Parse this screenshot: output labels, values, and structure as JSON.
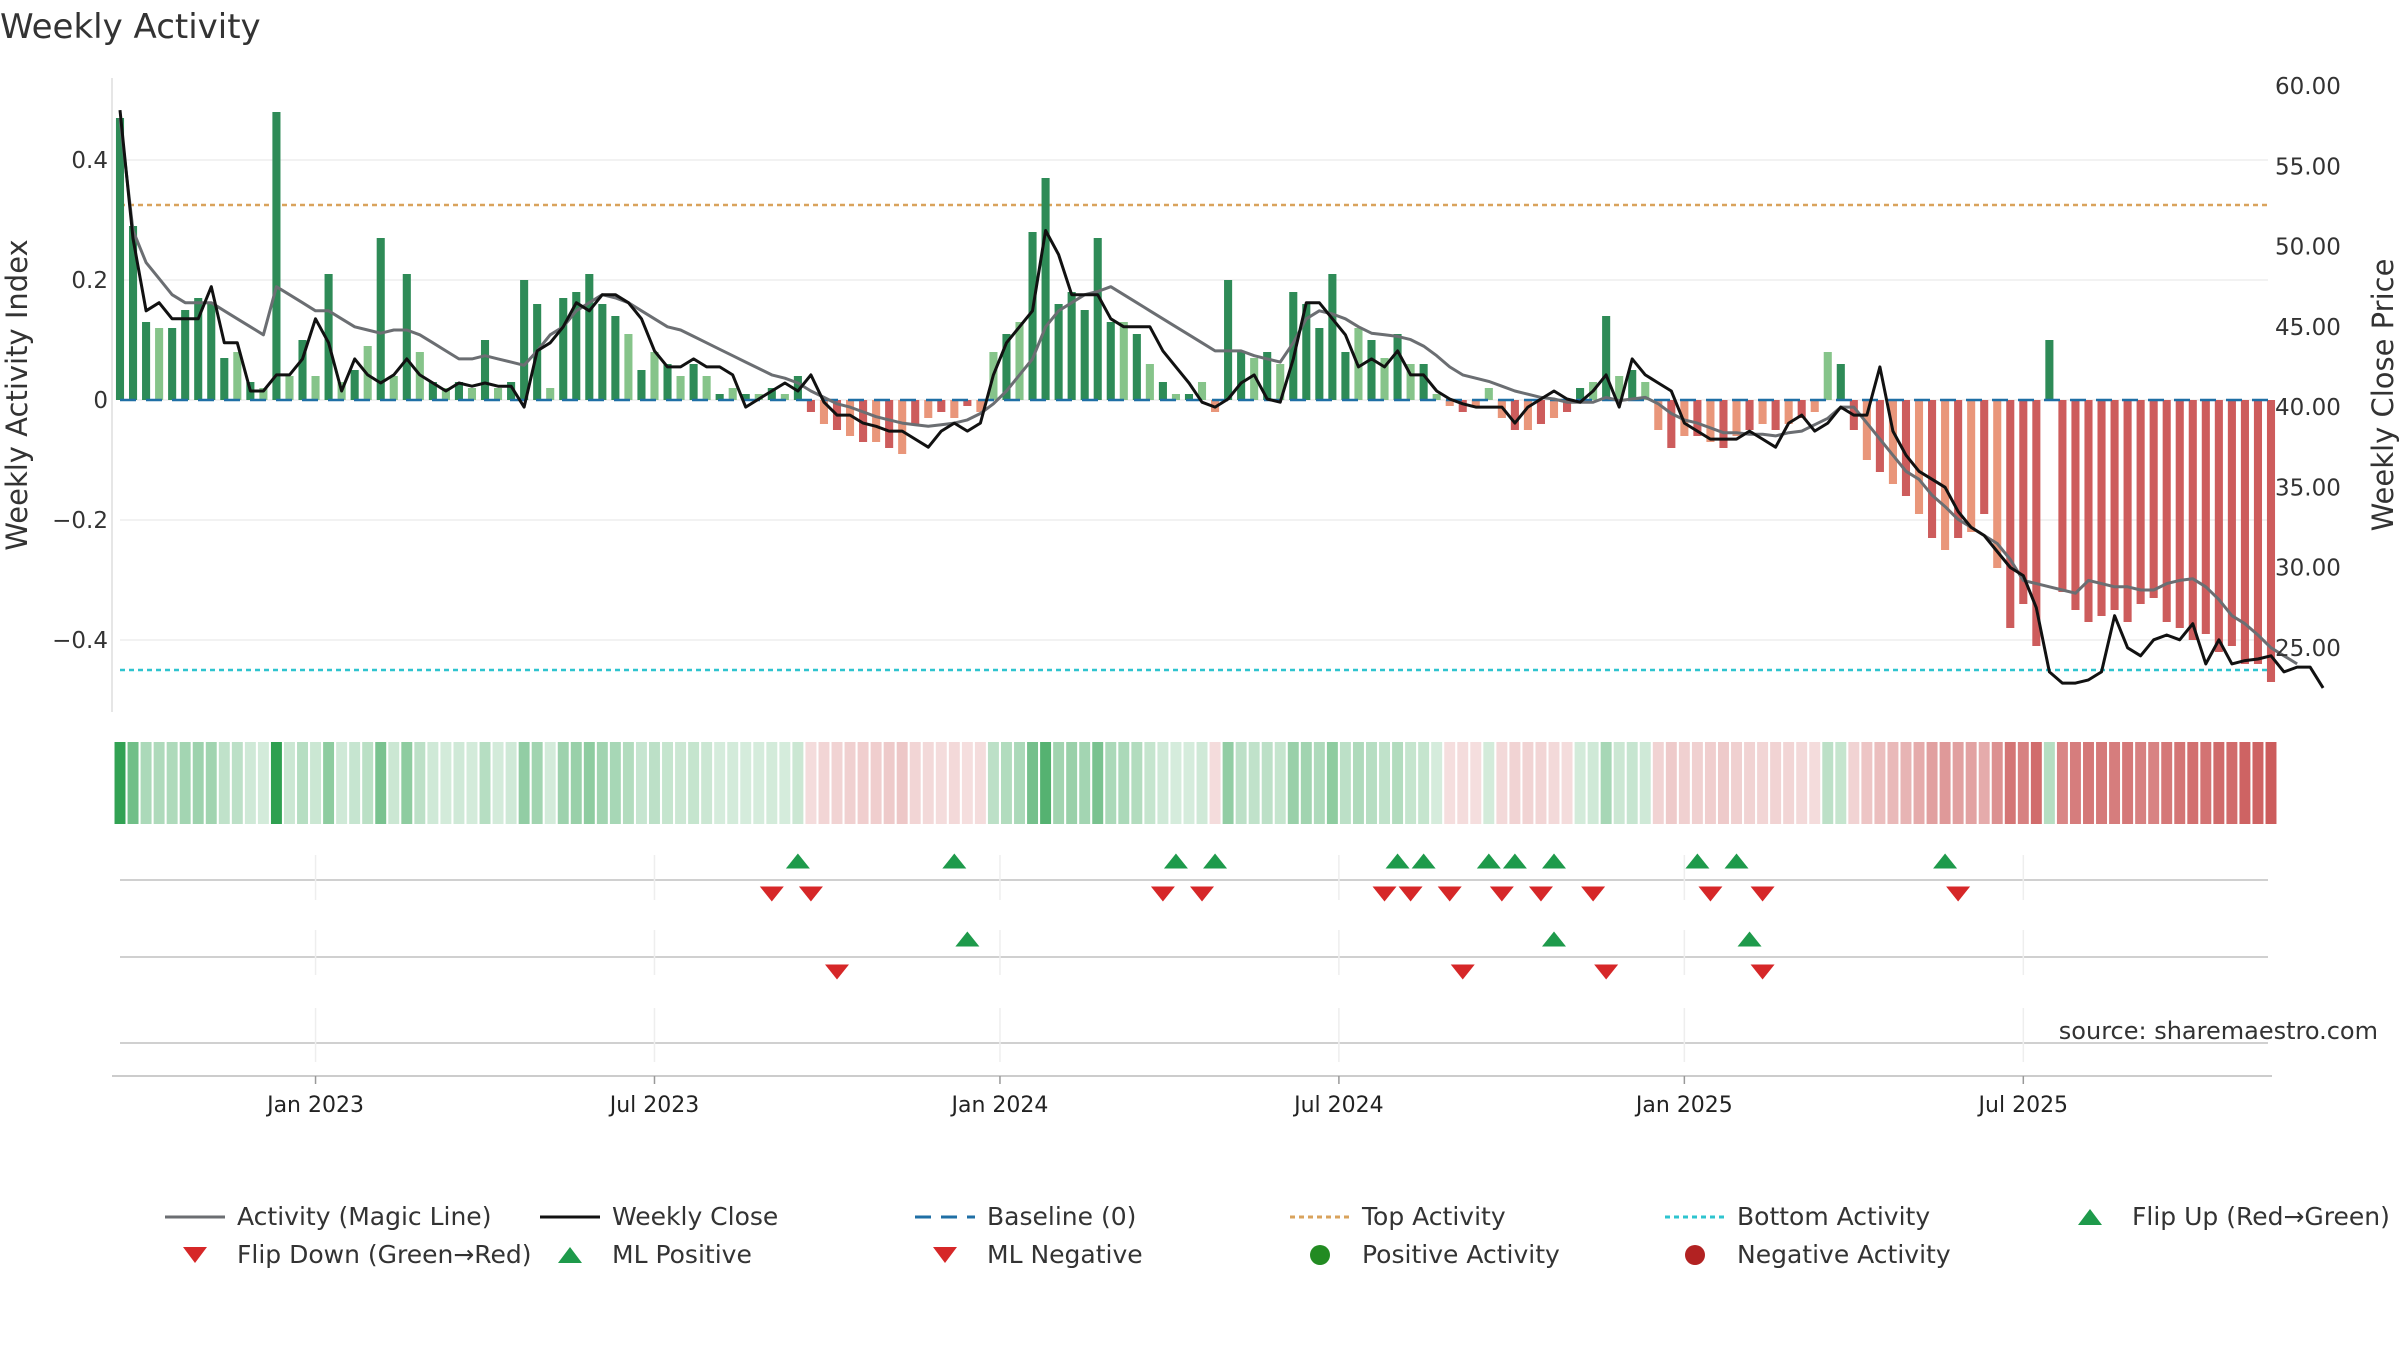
{
  "chart_data": {
    "type": "bar",
    "title": "Weekly Activity",
    "ylabel_left": "Weekly Activity Index",
    "ylabel_right": "Weekly Close Price",
    "source": "source: sharemaestro.com",
    "ylim_left": [
      -0.52,
      0.55
    ],
    "ylim_right": [
      21.0,
      61.0
    ],
    "left_ticks": [
      {
        "v": 0.4,
        "label": "0.4"
      },
      {
        "v": 0.2,
        "label": "0.2"
      },
      {
        "v": 0,
        "label": "0"
      },
      {
        "v": -0.2,
        "label": "−0.2"
      },
      {
        "v": -0.4,
        "label": "−0.4"
      }
    ],
    "right_ticks": [
      {
        "v": 60,
        "label": "60.00"
      },
      {
        "v": 55,
        "label": "55.00"
      },
      {
        "v": 50,
        "label": "50.00"
      },
      {
        "v": 45,
        "label": "45.00"
      },
      {
        "v": 40,
        "label": "40.00"
      },
      {
        "v": 35,
        "label": "35.00"
      },
      {
        "v": 30,
        "label": "30.00"
      },
      {
        "v": 25,
        "label": "25.00"
      }
    ],
    "x_ticks": [
      {
        "week": 15,
        "label": "Jan 2023"
      },
      {
        "week": 41,
        "label": "Jul 2023"
      },
      {
        "week": 67.5,
        "label": "Jan 2024"
      },
      {
        "week": 93.5,
        "label": "Jul 2024"
      },
      {
        "week": 120,
        "label": "Jan 2025"
      },
      {
        "week": 146,
        "label": "Jul 2025"
      }
    ],
    "top_activity": 0.325,
    "bottom_activity": -0.45,
    "activity": [
      0.47,
      0.29,
      0.13,
      0.12,
      0.12,
      0.15,
      0.17,
      0.16,
      0.07,
      0.08,
      0.03,
      0.02,
      0.48,
      0.04,
      0.1,
      0.04,
      0.21,
      0.03,
      0.05,
      0.09,
      0.27,
      0.04,
      0.21,
      0.08,
      0.03,
      0.02,
      0.03,
      0.02,
      0.1,
      0.02,
      0.03,
      0.2,
      0.16,
      0.02,
      0.17,
      0.18,
      0.21,
      0.16,
      0.14,
      0.11,
      0.05,
      0.08,
      0.06,
      0.04,
      0.06,
      0.04,
      0.01,
      0.02,
      0.01,
      0.01,
      0.02,
      0.01,
      0.04,
      -0.02,
      -0.04,
      -0.05,
      -0.06,
      -0.07,
      -0.07,
      -0.08,
      -0.09,
      -0.04,
      -0.03,
      -0.02,
      -0.03,
      -0.01,
      -0.02,
      0.08,
      0.11,
      0.13,
      0.28,
      0.37,
      0.16,
      0.18,
      0.15,
      0.27,
      0.13,
      0.13,
      0.11,
      0.06,
      0.03,
      0.01,
      0.01,
      0.03,
      -0.02,
      0.2,
      0.08,
      0.07,
      0.08,
      0.06,
      0.18,
      0.16,
      0.12,
      0.21,
      0.08,
      0.12,
      0.1,
      0.07,
      0.11,
      0.06,
      0.06,
      0.01,
      -0.01,
      -0.02,
      -0.01,
      0.02,
      -0.03,
      -0.05,
      -0.05,
      -0.04,
      -0.03,
      -0.02,
      0.02,
      0.03,
      0.14,
      0.04,
      0.05,
      0.03,
      -0.05,
      -0.08,
      -0.06,
      -0.06,
      -0.07,
      -0.08,
      -0.06,
      -0.05,
      -0.04,
      -0.05,
      -0.04,
      -0.03,
      -0.02,
      0.08,
      0.06,
      -0.05,
      -0.1,
      -0.12,
      -0.14,
      -0.16,
      -0.19,
      -0.23,
      -0.25,
      -0.23,
      -0.22,
      -0.19,
      -0.28,
      -0.38,
      -0.34,
      -0.41,
      0.1,
      -0.32,
      -0.35,
      -0.37,
      -0.36,
      -0.35,
      -0.37,
      -0.34,
      -0.33,
      -0.37,
      -0.38,
      -0.4,
      -0.39,
      -0.42,
      -0.41,
      -0.44,
      -0.44,
      -0.47
    ],
    "weekly_close": [
      58.5,
      50.5,
      46.0,
      46.5,
      45.5,
      45.5,
      45.5,
      47.5,
      44.0,
      44.0,
      41.0,
      41.0,
      42.0,
      42.0,
      43.0,
      45.5,
      44.0,
      41.0,
      43.0,
      42.0,
      41.5,
      42.0,
      43.0,
      42.0,
      41.5,
      41.0,
      41.5,
      41.3,
      41.5,
      41.3,
      41.3,
      40.0,
      43.5,
      44.0,
      45.0,
      46.5,
      46.0,
      47.0,
      47.0,
      46.5,
      45.5,
      43.5,
      42.5,
      42.5,
      43.0,
      42.5,
      42.5,
      42.0,
      40.0,
      40.5,
      41.0,
      41.5,
      41.0,
      42.0,
      40.3,
      39.5,
      39.5,
      39.0,
      38.8,
      38.5,
      38.5,
      38.0,
      37.5,
      38.5,
      39.0,
      38.5,
      39.0,
      42.0,
      44.0,
      45.0,
      46.0,
      51.0,
      49.5,
      47.0,
      47.0,
      47.0,
      45.5,
      45.0,
      45.0,
      45.0,
      43.5,
      42.5,
      41.5,
      40.3,
      40.0,
      40.5,
      41.5,
      42.0,
      40.5,
      40.3,
      43.0,
      46.5,
      46.5,
      45.5,
      44.5,
      42.5,
      43.0,
      42.5,
      43.5,
      42.0,
      42.0,
      41.0,
      40.5,
      40.2,
      40.0,
      40.0,
      40.0,
      39.0,
      40.0,
      40.5,
      41.0,
      40.5,
      40.3,
      41.0,
      42.0,
      40.0,
      43.0,
      42.0,
      41.5,
      41.0,
      39.0,
      38.5,
      38.0,
      38.0,
      38.0,
      38.5,
      38.0,
      37.5,
      39.0,
      39.5,
      38.5,
      39.0,
      40.0,
      39.5,
      39.5,
      42.5,
      38.5,
      37.0,
      36.0,
      35.5,
      35.0,
      33.5,
      32.5,
      32.0,
      31.0,
      30.0,
      29.5,
      27.5,
      23.5,
      22.8,
      22.8,
      23.0,
      23.5,
      27.0,
      25.0,
      24.5,
      25.5,
      25.8,
      25.5,
      26.5,
      24.0,
      25.5,
      24.0,
      24.2,
      24.3,
      24.5,
      23.5,
      23.8,
      23.8,
      22.5
    ],
    "magic_line": [
      58.0,
      51.0,
      49.0,
      48.0,
      47.0,
      46.5,
      46.5,
      46.5,
      46.0,
      45.5,
      45.0,
      44.5,
      47.5,
      47.0,
      46.5,
      46.0,
      46.0,
      45.5,
      45.0,
      44.8,
      44.6,
      44.8,
      44.8,
      44.5,
      44.0,
      43.5,
      43.0,
      43.0,
      43.2,
      43.0,
      42.8,
      42.6,
      43.5,
      44.5,
      45.0,
      46.0,
      46.5,
      47.0,
      46.8,
      46.5,
      46.0,
      45.5,
      45.0,
      44.8,
      44.4,
      44.0,
      43.6,
      43.2,
      42.8,
      42.4,
      42.0,
      41.8,
      41.5,
      41.0,
      40.6,
      40.2,
      40.0,
      39.7,
      39.4,
      39.2,
      39.0,
      38.9,
      38.8,
      38.9,
      39.0,
      39.2,
      39.6,
      40.2,
      41.0,
      42.0,
      43.0,
      45.0,
      46.0,
      46.5,
      47.0,
      47.2,
      47.5,
      47.0,
      46.5,
      46.0,
      45.5,
      45.0,
      44.5,
      44.0,
      43.5,
      43.5,
      43.5,
      43.2,
      43.0,
      42.8,
      44.0,
      45.5,
      46.0,
      45.8,
      45.5,
      45.0,
      44.6,
      44.5,
      44.4,
      44.2,
      43.8,
      43.2,
      42.5,
      42.0,
      41.8,
      41.6,
      41.3,
      41.0,
      40.8,
      40.6,
      40.5,
      40.3,
      40.3,
      40.3,
      40.6,
      40.4,
      40.5,
      40.6,
      40.2,
      39.6,
      39.2,
      39.0,
      38.7,
      38.4,
      38.4,
      38.3,
      38.3,
      38.2,
      38.4,
      38.5,
      38.9,
      39.3,
      40.0,
      40.0,
      39.0,
      38.0,
      37.0,
      36.0,
      35.5,
      34.5,
      33.8,
      33.0,
      32.5,
      32.0,
      31.5,
      30.5,
      29.2,
      29.0,
      28.8,
      28.6,
      28.4,
      29.2,
      29.0,
      28.8,
      28.8,
      28.6,
      28.6,
      29.0,
      29.2,
      29.3,
      28.8,
      28.0,
      27.0,
      26.5,
      25.8,
      25.0,
      24.5,
      24.0
    ],
    "flip_up_weeks": [
      52,
      64,
      81,
      84,
      98,
      100,
      105,
      107,
      110,
      121,
      124,
      140
    ],
    "flip_down_weeks": [
      50,
      53,
      80,
      83,
      97,
      99,
      102,
      106,
      109,
      113,
      122,
      126,
      141
    ],
    "ml_positive_weeks": [
      65,
      110,
      125
    ],
    "ml_negative_weeks": [
      55,
      103,
      114,
      126
    ],
    "legend": [
      {
        "key": "magic",
        "label": "Activity (Magic Line)"
      },
      {
        "key": "close",
        "label": "Weekly Close"
      },
      {
        "key": "baseline",
        "label": "Baseline (0)"
      },
      {
        "key": "top",
        "label": "Top Activity"
      },
      {
        "key": "bottom",
        "label": "Bottom Activity"
      },
      {
        "key": "flipup",
        "label": "Flip Up (Red→Green)"
      },
      {
        "key": "flipdown",
        "label": "Flip Down (Green→Red)"
      },
      {
        "key": "mlpos",
        "label": "ML Positive"
      },
      {
        "key": "mlneg",
        "label": "ML Negative"
      },
      {
        "key": "posact",
        "label": "Positive Activity"
      },
      {
        "key": "negact",
        "label": "Negative Activity"
      }
    ],
    "colors": {
      "pos_strong": "#2e8b57",
      "pos_light": "#86c48a",
      "neg_strong": "#cd5c5c",
      "neg_light": "#e9967a",
      "magic": "#6b6e72",
      "close": "#111111",
      "baseline": "#1f6fa5",
      "top": "#d9a35c",
      "bottom": "#2ec4cf",
      "up_marker": "#1e9a4b",
      "down_marker": "#d62728",
      "pos_dot": "#228b22",
      "neg_dot": "#b22222"
    }
  }
}
